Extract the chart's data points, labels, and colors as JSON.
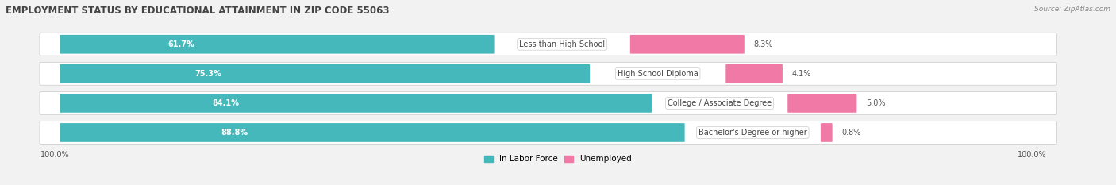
{
  "title": "EMPLOYMENT STATUS BY EDUCATIONAL ATTAINMENT IN ZIP CODE 55063",
  "source": "Source: ZipAtlas.com",
  "categories": [
    "Less than High School",
    "High School Diploma",
    "College / Associate Degree",
    "Bachelor's Degree or higher"
  ],
  "in_labor_force": [
    61.7,
    75.3,
    84.1,
    88.8
  ],
  "unemployed": [
    8.3,
    4.1,
    5.0,
    0.8
  ],
  "bar_color_labor": "#45b8bc",
  "bar_color_unemployed": "#f07aa5",
  "background_color": "#f2f2f2",
  "bar_bg_color": "#e8e8e8",
  "bar_height": 0.62,
  "x_left_label": "100.0%",
  "x_right_label": "100.0%",
  "legend_labor": "In Labor Force",
  "legend_unemployed": "Unemployed",
  "title_fontsize": 8.5,
  "label_fontsize": 7,
  "category_fontsize": 7,
  "value_fontsize": 7
}
